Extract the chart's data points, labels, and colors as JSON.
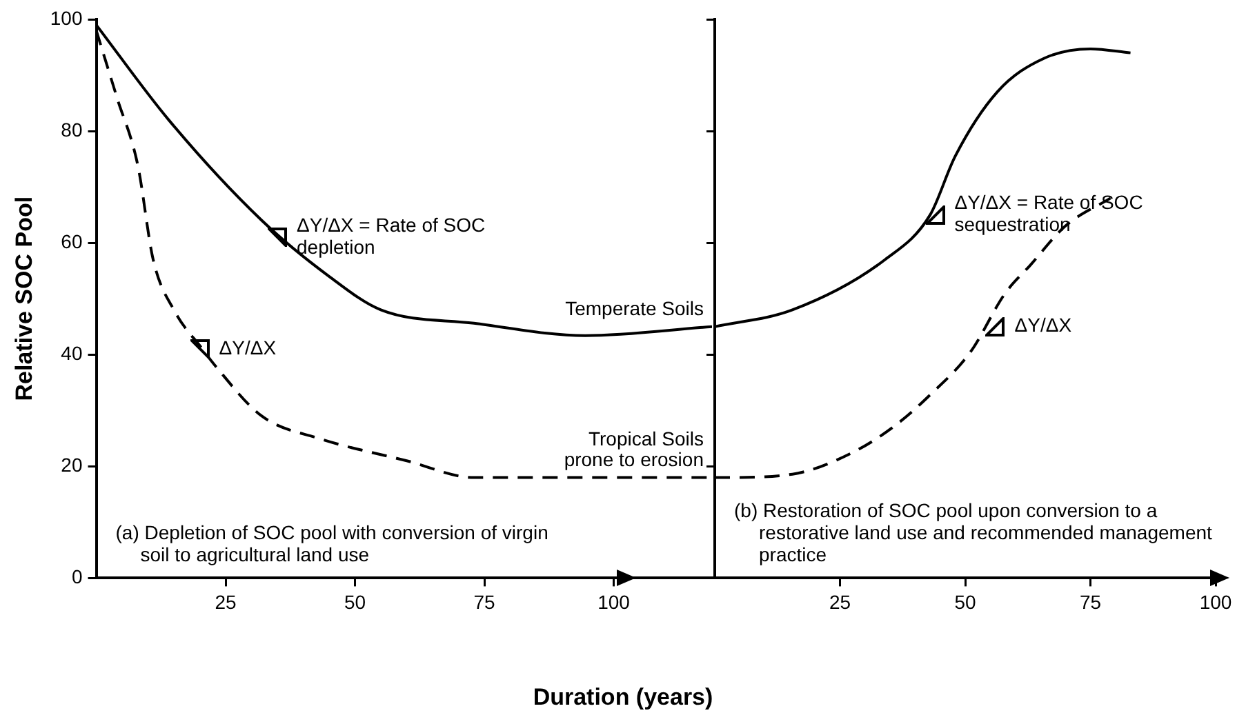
{
  "chart_data": [
    {
      "type": "line",
      "ylabel": "Relative SOC Pool",
      "xlabel": "Duration (years)",
      "xlim": [
        0,
        119
      ],
      "xticks": [
        25,
        50,
        75,
        100
      ],
      "ylim": [
        0,
        100
      ],
      "yticks": [
        0,
        20,
        40,
        60,
        80,
        100
      ],
      "grid": false,
      "legend": false,
      "marker": "none",
      "series": [
        {
          "name": "Temperate Soils",
          "color": "#000000",
          "line_style": "solid",
          "x": [
            0,
            14,
            32,
            45,
            55,
            73,
            94.5,
            119
          ],
          "values": [
            99,
            82,
            64,
            54,
            48,
            45.6,
            43.4,
            45
          ]
        },
        {
          "name": "Tropical Soils prone to erosion",
          "color": "#000000",
          "line_style": "dashed",
          "x": [
            0,
            4,
            8,
            11,
            15,
            20.5,
            23,
            32,
            43,
            60,
            73,
            87,
            119
          ],
          "values": [
            98,
            86,
            74,
            57,
            48,
            41,
            38,
            29,
            25,
            21,
            18,
            18,
            18
          ]
        }
      ],
      "annotations": [
        {
          "text": "ΔY/ΔX = Rate of SOC depletion",
          "x": 35,
          "y": 61
        },
        {
          "text": "ΔY/ΔX",
          "x": 20,
          "y": 41
        },
        "(a) Depletion of SOC pool with conversion of virgin soil to agricultural land use"
      ]
    },
    {
      "type": "line",
      "xlim": [
        0,
        100
      ],
      "xticks": [
        25,
        50,
        75,
        100
      ],
      "ylim": [
        0,
        100
      ],
      "yticks": [
        0,
        20,
        40,
        60,
        80,
        100
      ],
      "tick_labels": "x",
      "grid": false,
      "legend": false,
      "marker": "none",
      "series": [
        {
          "color": "#000000",
          "line_style": "solid",
          "x": [
            0,
            15.5,
            34,
            43,
            48,
            56.4,
            65.7,
            75,
            83
          ],
          "values": [
            45,
            48,
            57,
            65,
            75.5,
            87,
            93,
            94.7,
            94
          ]
        },
        {
          "color": "#000000",
          "line_style": "dashed",
          "x": [
            0,
            2,
            15.5,
            28,
            36,
            43,
            51,
            58,
            63,
            70,
            79
          ],
          "values": [
            18,
            18,
            18.6,
            22.7,
            27.3,
            32.8,
            40.4,
            51,
            56,
            63,
            68
          ]
        }
      ],
      "annotations": [
        {
          "text": "ΔY/ΔX = Rate of SOC sequestration",
          "x": 44,
          "y": 65
        },
        {
          "text": "ΔY/ΔX",
          "x": 56,
          "y": 45
        },
        "(b) Restoration of SOC pool upon conversion to a restorative land use and recommended management practice"
      ]
    }
  ]
}
